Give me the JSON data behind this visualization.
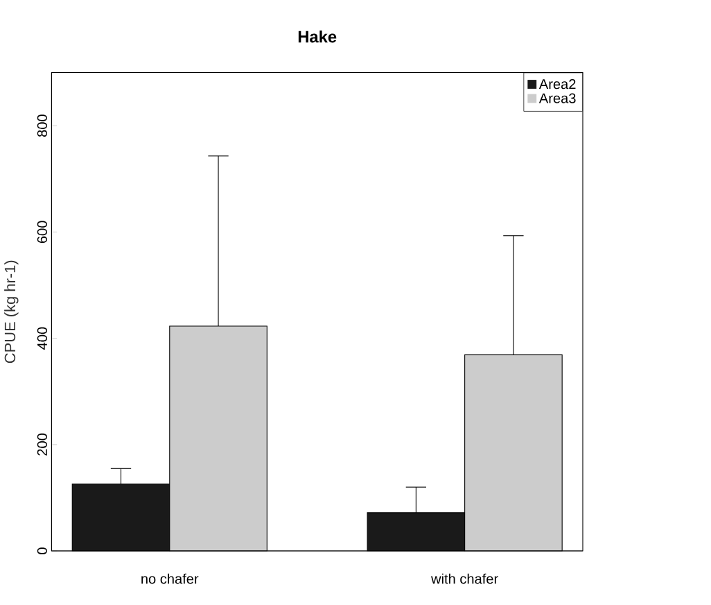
{
  "chart_data": {
    "type": "bar",
    "title": "Hake",
    "ylabel": "CPUE (kg hr-1)",
    "categories": [
      "no chafer",
      "with chafer"
    ],
    "series": [
      {
        "name": "Area2",
        "color": "#1a1a1a",
        "values": [
          126,
          72
        ],
        "errors": [
          [
            126,
            155
          ],
          [
            72,
            120
          ]
        ]
      },
      {
        "name": "Area3",
        "color": "#cccccc",
        "values": [
          423,
          369
        ],
        "errors": [
          [
            423,
            743
          ],
          [
            369,
            593
          ]
        ]
      }
    ],
    "ylim": [
      0,
      900
    ],
    "yticks": [
      0,
      200,
      400,
      600,
      800
    ],
    "legend": "top right"
  }
}
